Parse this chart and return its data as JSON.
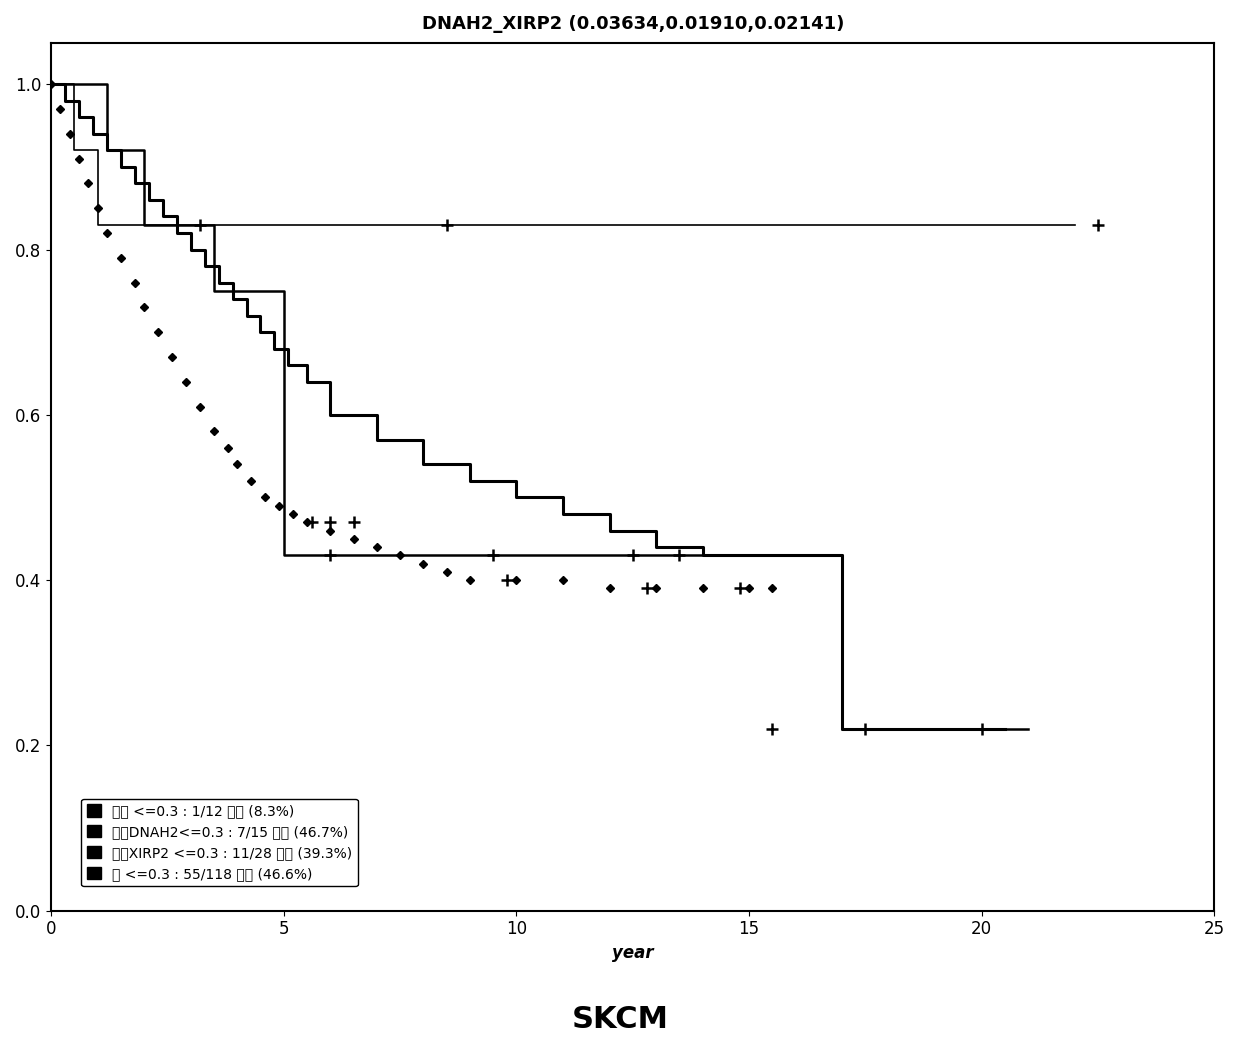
{
  "title": "DNAH2_XIRP2 (0.03634,0.01910,0.02141)",
  "xlabel": "year",
  "subtitle": "SKCM",
  "ylim": [
    0,
    1.05
  ],
  "xlim": [
    0,
    25
  ],
  "xticks": [
    0,
    5,
    10,
    15,
    20,
    25
  ],
  "yticks": [
    0.0,
    0.2,
    0.4,
    0.6,
    0.8,
    1.0
  ],
  "legend_labels": [
    "均有 <=0.3 : 1/12 死亡 (8.3%)",
    "仅有DNAH2<=0.3 : 7/15 死亡 (46.7%)",
    "仅有XIRP2 <=0.3 : 11/28 死亡 (39.3%)",
    "无 <=0.3 : 55/118 死亡 (46.6%)"
  ],
  "curve1_x": [
    0,
    0.3,
    0.5,
    1.0,
    1.5,
    2.5,
    22.0
  ],
  "curve1_y": [
    1.0,
    1.0,
    0.92,
    0.83,
    0.83,
    0.83,
    0.83
  ],
  "curve1_censors": [
    [
      3.2,
      0.83
    ],
    [
      8.5,
      0.83
    ],
    [
      22.5,
      0.83
    ]
  ],
  "curve2_x": [
    0,
    0.5,
    1.2,
    2.0,
    3.5,
    5.0,
    5.0,
    17.0,
    17.0,
    21.0
  ],
  "curve2_y": [
    1.0,
    1.0,
    0.92,
    0.83,
    0.75,
    0.43,
    0.43,
    0.43,
    0.22,
    0.22
  ],
  "curve2_censors": [
    [
      6.0,
      0.43
    ],
    [
      9.5,
      0.43
    ],
    [
      12.5,
      0.43
    ]
  ],
  "curve3_x": [
    0,
    0.2,
    0.4,
    0.6,
    0.8,
    1.0,
    1.2,
    1.5,
    1.8,
    2.0,
    2.3,
    2.6,
    2.9,
    3.2,
    3.5,
    3.8,
    4.0,
    4.3,
    4.6,
    4.9,
    5.2,
    5.5,
    6.0,
    6.5,
    7.0,
    7.5,
    8.0,
    8.5,
    9.0,
    10.0,
    11.0,
    12.0,
    13.0,
    14.0,
    15.0,
    15.5
  ],
  "curve3_y": [
    1.0,
    0.97,
    0.94,
    0.91,
    0.88,
    0.85,
    0.82,
    0.79,
    0.76,
    0.73,
    0.7,
    0.67,
    0.64,
    0.61,
    0.58,
    0.56,
    0.54,
    0.52,
    0.5,
    0.49,
    0.48,
    0.47,
    0.46,
    0.45,
    0.44,
    0.43,
    0.42,
    0.41,
    0.4,
    0.4,
    0.4,
    0.39,
    0.39,
    0.39,
    0.39,
    0.39
  ],
  "curve3_censors": [
    [
      5.6,
      0.47
    ],
    [
      6.0,
      0.47
    ],
    [
      6.5,
      0.47
    ],
    [
      9.8,
      0.4
    ],
    [
      12.8,
      0.39
    ],
    [
      14.8,
      0.39
    ]
  ],
  "curve4_x": [
    0,
    0.3,
    0.6,
    0.9,
    1.2,
    1.5,
    1.8,
    2.1,
    2.4,
    2.7,
    3.0,
    3.3,
    3.6,
    3.9,
    4.2,
    4.5,
    4.8,
    5.1,
    5.5,
    6.0,
    7.0,
    8.0,
    9.0,
    10.0,
    11.0,
    12.0,
    13.0,
    14.0,
    15.0,
    16.0,
    17.0,
    17.0,
    20.5
  ],
  "curve4_y": [
    1.0,
    0.98,
    0.96,
    0.94,
    0.92,
    0.9,
    0.88,
    0.86,
    0.84,
    0.82,
    0.8,
    0.78,
    0.76,
    0.74,
    0.72,
    0.7,
    0.68,
    0.66,
    0.64,
    0.6,
    0.57,
    0.54,
    0.52,
    0.5,
    0.48,
    0.46,
    0.44,
    0.43,
    0.43,
    0.43,
    0.43,
    0.22,
    0.22
  ],
  "curve4_censors": [
    [
      13.5,
      0.43
    ],
    [
      15.5,
      0.22
    ],
    [
      17.5,
      0.22
    ],
    [
      20.0,
      0.22
    ]
  ],
  "background_color": "#ffffff",
  "title_fontsize": 13,
  "axis_fontsize": 12,
  "legend_fontsize": 10,
  "subtitle_fontsize": 22
}
